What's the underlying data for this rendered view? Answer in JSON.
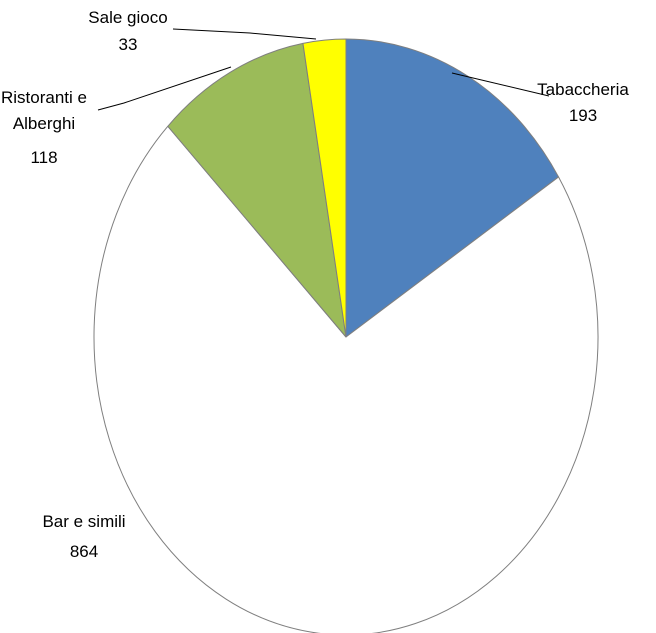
{
  "chart_data": {
    "type": "pie",
    "title": "",
    "start_angle_deg": 0,
    "direction": "clockwise",
    "slices": [
      {
        "name": "Tabaccheria",
        "value": 193,
        "color": "#4f81bd",
        "label_lines": [
          "Tabaccheria",
          "193"
        ]
      },
      {
        "name": "Bar e simili",
        "value": 864,
        "color": "#ffffff",
        "label_lines": [
          "Bar e simili",
          "864"
        ]
      },
      {
        "name": "Ristoranti e Alberghi",
        "value": 118,
        "color": "#9bbb59",
        "label_lines": [
          "Ristoranti e",
          "Alberghi",
          "118"
        ]
      },
      {
        "name": "Sale gioco",
        "value": 33,
        "color": "#ffff00",
        "label_lines": [
          "Sale gioco",
          "33"
        ]
      }
    ],
    "legend": "none",
    "slice_outline_color": "#7f7f7f"
  }
}
